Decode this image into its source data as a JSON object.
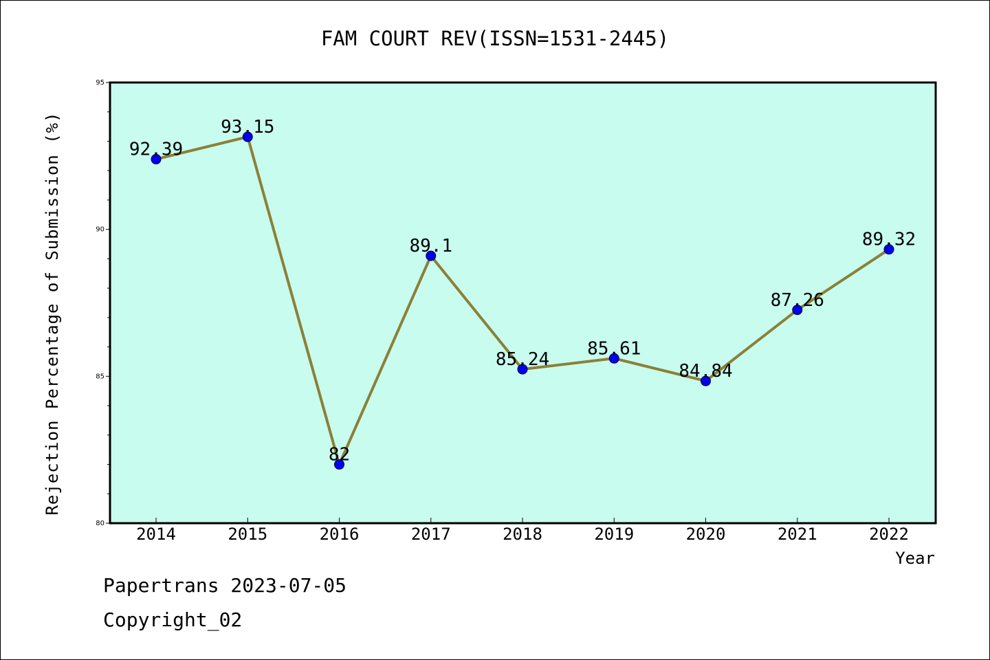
{
  "chart_data": {
    "type": "line",
    "title": "FAM COURT REV(ISSN=1531-2445)",
    "xlabel": "Year",
    "ylabel": "Rejection Percentage of Submission (%)",
    "categories": [
      "2014",
      "2015",
      "2016",
      "2017",
      "2018",
      "2019",
      "2020",
      "2021",
      "2022"
    ],
    "series": [
      {
        "values": [
          92.39,
          93.15,
          82,
          89.1,
          85.24,
          85.61,
          84.84,
          87.26,
          89.32
        ],
        "labels": [
          "92.39",
          "93.15",
          "82",
          "89.1",
          "85.24",
          "85.61",
          "84.84",
          "87.26",
          "89.32"
        ]
      }
    ],
    "ylim": [
      80,
      95
    ],
    "yticks": [
      "80",
      "85",
      "90",
      "95"
    ],
    "grid": false,
    "colors": {
      "plot_background": "#c8fcee",
      "line": "#8b8038",
      "marker": "#0000ee"
    }
  },
  "footer": {
    "line1": "Papertrans 2023-07-05",
    "line2": "Copyright_02"
  }
}
